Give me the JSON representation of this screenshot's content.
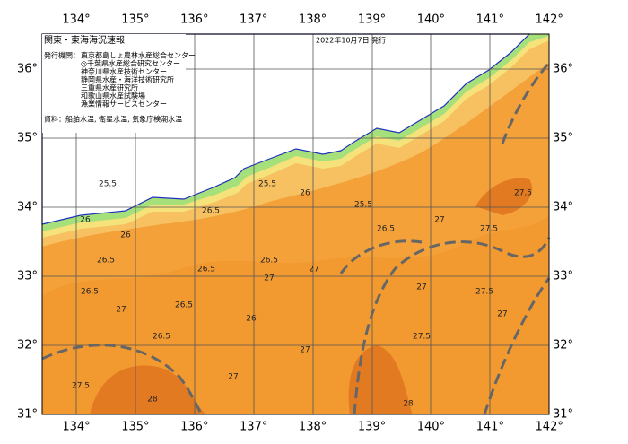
{
  "header": {
    "title": "関東・東海海況速報",
    "date": "2022年10月7日 発行"
  },
  "info": {
    "agencies_label": "発行機関：",
    "agencies": [
      "東京都島しょ農林水産総合センター",
      "◎千葉県水産総合研究センター",
      "神奈川県水産技術センター",
      "静岡県水産・海洋技術研究所",
      "三重県水産研究所",
      "和歌山県水産試験場",
      "漁業情報サービスセンター"
    ],
    "source": "資料：船舶水温, 衛星水温, 気象庁検潮水温"
  },
  "longitude_labels": [
    "134°",
    "135°",
    "136°",
    "137°",
    "138°",
    "139°",
    "140°",
    "141°",
    "142°"
  ],
  "latitude_labels": [
    "36°",
    "35°",
    "34°",
    "33°",
    "32°",
    "31°"
  ],
  "contour_labels": [
    "25.5",
    "26",
    "26.5",
    "25.5",
    "26",
    "25.5",
    "26.5",
    "26",
    "26.5",
    "27",
    "26.5",
    "26.5",
    "27",
    "26",
    "26.5",
    "27",
    "27",
    "27.5",
    "26.5",
    "27",
    "27",
    "27.5",
    "28",
    "27.5",
    "27.5",
    "28",
    "27",
    "27.5",
    "26.5",
    "27"
  ]
}
